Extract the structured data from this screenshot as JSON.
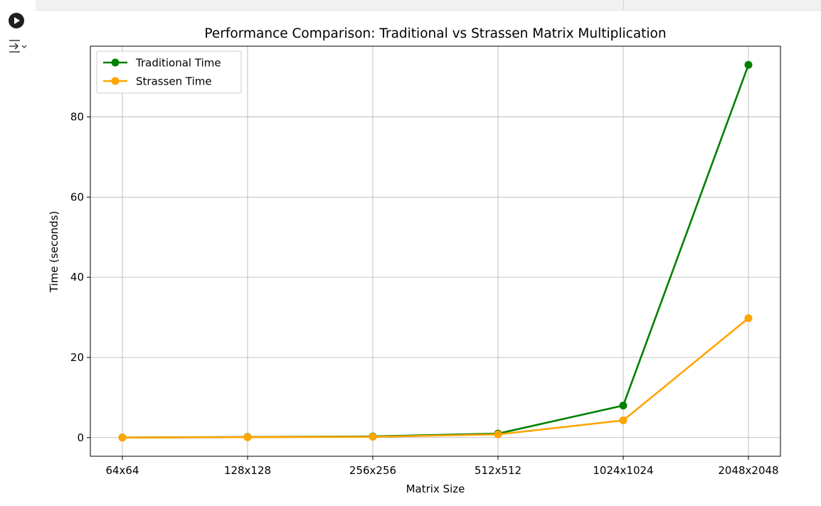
{
  "cell": {
    "run_icon": "play-circle-icon",
    "output_icon": "output-expand-icon"
  },
  "chart_data": {
    "type": "line",
    "title": "Performance Comparison: Traditional vs Strassen Matrix Multiplication",
    "xlabel": "Matrix Size",
    "ylabel": "Time (seconds)",
    "categories": [
      "64x64",
      "128x128",
      "256x256",
      "512x512",
      "1024x1024",
      "2048x2048"
    ],
    "series": [
      {
        "name": "Traditional Time",
        "color": "#008000",
        "values": [
          0.02,
          0.15,
          0.3,
          1.0,
          8.0,
          93.0
        ]
      },
      {
        "name": "Strassen Time",
        "color": "#ffa500",
        "values": [
          0.01,
          0.1,
          0.2,
          0.8,
          4.3,
          29.8
        ]
      }
    ],
    "ylim": [
      -4.65,
      97.65
    ],
    "yticks": [
      0,
      20,
      40,
      60,
      80
    ],
    "grid": true,
    "legend_position": "upper left"
  }
}
